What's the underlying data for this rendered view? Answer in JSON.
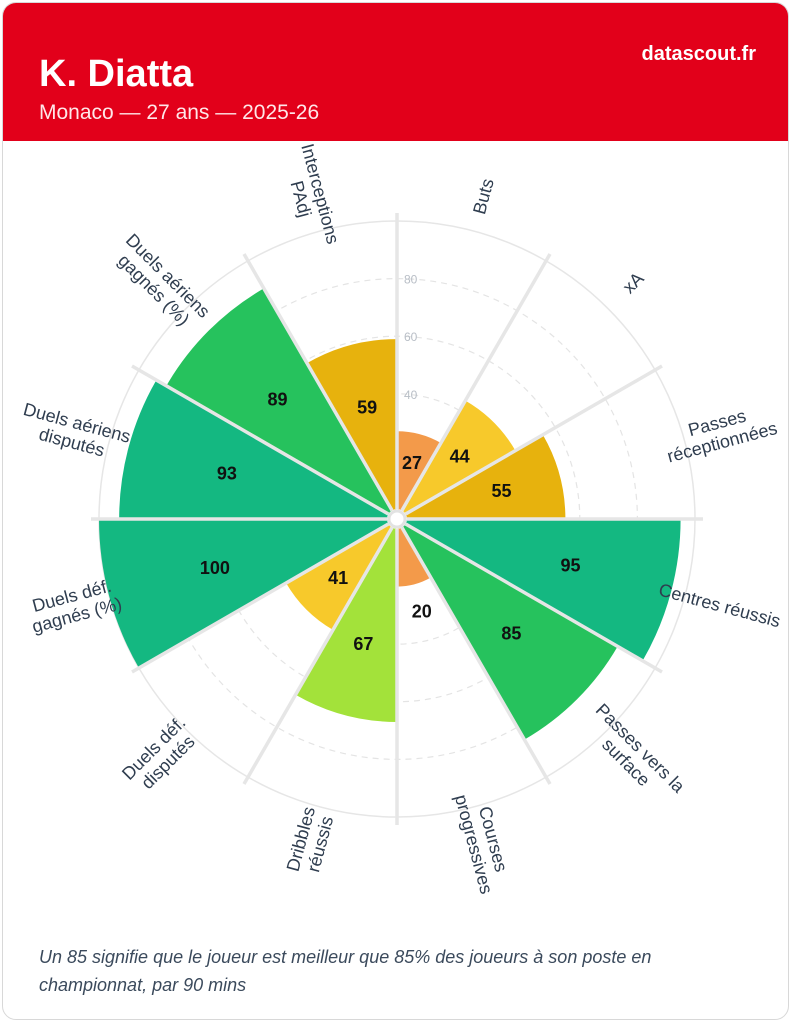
{
  "header": {
    "player_name": "K. Diatta",
    "subtitle": "Monaco — 27 ans — 2025-26",
    "brand": "datascout.fr",
    "background_color": "#e2001a"
  },
  "chart_data": {
    "type": "polar-bar",
    "rlim": [
      0,
      100
    ],
    "ticks": [
      "40",
      "60",
      "80"
    ],
    "tick_values": [
      40,
      60,
      80
    ],
    "categories": [
      {
        "label": [
          "Buts"
        ],
        "value": 27,
        "color": "#f39a4a"
      },
      {
        "label": [
          "xA"
        ],
        "value": 44,
        "color": "#f7c92b"
      },
      {
        "label": [
          "Passes",
          "réceptionnées"
        ],
        "value": 55,
        "color": "#e7b20d"
      },
      {
        "label": [
          "Centres réussis"
        ],
        "value": 95,
        "color": "#14b881"
      },
      {
        "label": [
          "Passes vers la",
          "surface"
        ],
        "value": 85,
        "color": "#26c25d"
      },
      {
        "label": [
          "Courses",
          "progressives"
        ],
        "value": 20,
        "color": "#f39a4a"
      },
      {
        "label": [
          "Dribbles",
          "réussis"
        ],
        "value": 67,
        "color": "#a3e23a"
      },
      {
        "label": [
          "Duels déf.",
          "disputés"
        ],
        "value": 41,
        "color": "#f7c92b"
      },
      {
        "label": [
          "Duels déf.",
          "gagnés (%)"
        ],
        "value": 100,
        "color": "#14b881"
      },
      {
        "label": [
          "Duels aériens",
          "disputés"
        ],
        "value": 93,
        "color": "#14b881"
      },
      {
        "label": [
          "Duels aériens",
          "gagnés (%)"
        ],
        "value": 89,
        "color": "#26c25d"
      },
      {
        "label": [
          "Interceptions",
          "PAdj"
        ],
        "value": 59,
        "color": "#e7b20d"
      }
    ]
  },
  "footnote": "Un 85 signifie que le joueur est meilleur que 85% des joueurs à son poste en championnat, par 90 mins"
}
